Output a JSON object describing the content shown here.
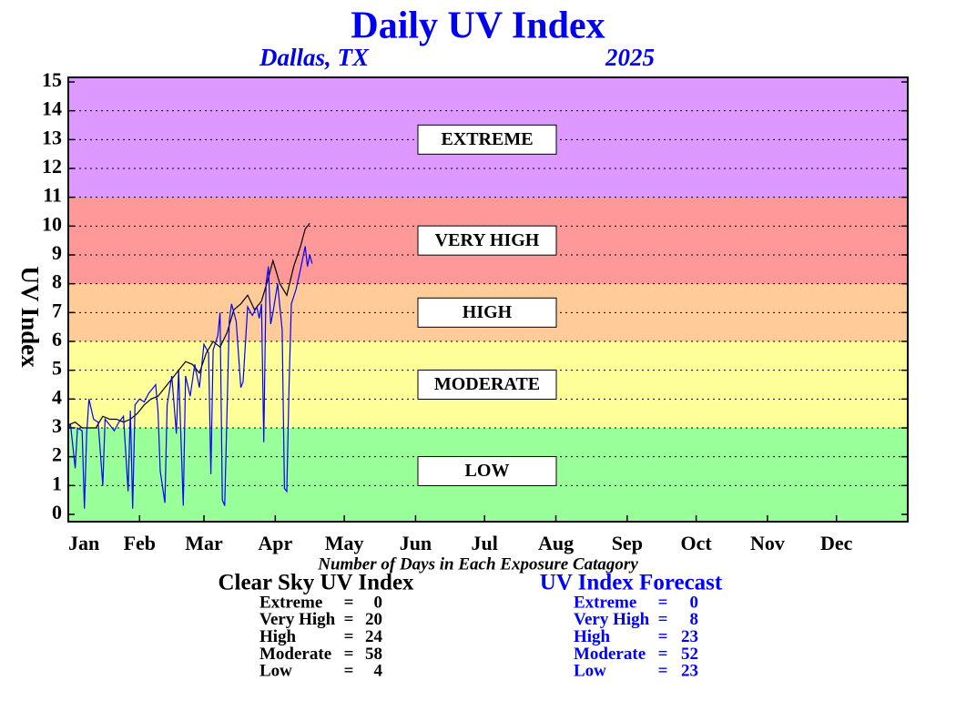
{
  "chart_data": {
    "type": "line",
    "title": "Daily UV Index",
    "subtitle": "Dallas, TX",
    "year": "2025",
    "y_label": "UV Index",
    "xlim": [
      1,
      366
    ],
    "xticks": [
      {
        "value": 1,
        "label": "Jan"
      },
      {
        "value": 32,
        "label": "Feb"
      },
      {
        "value": 60,
        "label": "Mar"
      },
      {
        "value": 91,
        "label": "Apr"
      },
      {
        "value": 121,
        "label": "May"
      },
      {
        "value": 152,
        "label": "Jun"
      },
      {
        "value": 182,
        "label": "Jul"
      },
      {
        "value": 213,
        "label": "Aug"
      },
      {
        "value": 244,
        "label": "Sep"
      },
      {
        "value": 274,
        "label": "Oct"
      },
      {
        "value": 305,
        "label": "Nov"
      },
      {
        "value": 335,
        "label": "Dec"
      }
    ],
    "ylim": [
      0,
      15
    ],
    "yticks": [
      0,
      1,
      2,
      3,
      4,
      5,
      6,
      7,
      8,
      9,
      10,
      11,
      12,
      13,
      14,
      15
    ],
    "grid": true,
    "bands": [
      {
        "label": "LOW",
        "from": 0,
        "to": 3,
        "color": "#99ff99"
      },
      {
        "label": "MODERATE",
        "from": 3,
        "to": 6,
        "color": "#ffff99"
      },
      {
        "label": "HIGH",
        "from": 6,
        "to": 8,
        "color": "#ffcc99"
      },
      {
        "label": "VERY HIGH",
        "from": 8,
        "to": 11,
        "color": "#ff9999"
      },
      {
        "label": "EXTREME",
        "from": 11,
        "to": 15,
        "color": "#dd99ff"
      }
    ],
    "series": [
      {
        "name": "Clear Sky UV Index",
        "color": "#000000",
        "x": [
          1,
          4,
          7,
          10,
          13,
          16,
          19,
          22,
          25,
          28,
          31,
          34,
          37,
          40,
          43,
          46,
          49,
          52,
          55,
          58,
          61,
          64,
          67,
          70,
          73,
          76,
          79,
          82,
          85,
          88,
          90,
          93,
          96,
          99,
          102,
          104,
          106
        ],
        "values": [
          3.1,
          3.2,
          3.0,
          3.0,
          3.0,
          3.4,
          3.3,
          3.3,
          3.2,
          3.3,
          3.5,
          3.8,
          4.0,
          4.1,
          4.4,
          4.7,
          5.0,
          5.3,
          5.2,
          4.9,
          5.6,
          6.0,
          5.8,
          6.3,
          7.1,
          7.3,
          7.6,
          7.1,
          7.4,
          8.2,
          8.8,
          8.0,
          7.6,
          8.6,
          9.3,
          9.9,
          10.1
        ]
      },
      {
        "name": "UV Index Forecast",
        "color": "#0000ff",
        "x": [
          1,
          2,
          4,
          5,
          7,
          8,
          9,
          10,
          12,
          14,
          16,
          17,
          19,
          21,
          23,
          25,
          27,
          28,
          29,
          30,
          32,
          34,
          36,
          39,
          40,
          41,
          43,
          44,
          46,
          48,
          49,
          51,
          52,
          54,
          56,
          58,
          60,
          62,
          63,
          64,
          66,
          67,
          68,
          69,
          71,
          72,
          74,
          76,
          77,
          79,
          81,
          83,
          84,
          85,
          86,
          87,
          88,
          89,
          90,
          92,
          94,
          95,
          96,
          97,
          98,
          100,
          102,
          104,
          105,
          106,
          107
        ],
        "values": [
          3.0,
          3.1,
          1.6,
          3.0,
          2.9,
          0.2,
          2.8,
          4.0,
          3.3,
          3.2,
          1.0,
          3.3,
          3.1,
          2.9,
          3.2,
          3.4,
          0.8,
          3.6,
          0.2,
          3.8,
          4.0,
          3.9,
          4.2,
          4.5,
          3.6,
          1.5,
          0.4,
          3.8,
          4.8,
          2.8,
          5.0,
          0.3,
          4.8,
          4.1,
          5.2,
          4.4,
          5.9,
          5.6,
          1.4,
          5.7,
          6.2,
          7.0,
          0.5,
          0.3,
          6.7,
          7.3,
          6.7,
          4.4,
          4.6,
          7.2,
          6.9,
          7.2,
          6.8,
          7.3,
          2.5,
          8.0,
          8.6,
          6.6,
          7.0,
          8.0,
          6.4,
          0.9,
          0.8,
          4.5,
          7.3,
          7.8,
          8.5,
          9.3,
          8.6,
          9.0,
          8.7
        ]
      }
    ],
    "summary_title": "Number of Days in Each Exposure Catagory",
    "equals": "=",
    "summary": [
      {
        "title": "Clear Sky UV Index",
        "rows": [
          {
            "label": "Extreme",
            "value": 0
          },
          {
            "label": "Very High",
            "value": 20
          },
          {
            "label": "High",
            "value": 24
          },
          {
            "label": "Moderate",
            "value": 58
          },
          {
            "label": "Low",
            "value": 4
          }
        ]
      },
      {
        "title": "UV Index Forecast",
        "rows": [
          {
            "label": "Extreme",
            "value": 0
          },
          {
            "label": "Very High",
            "value": 8
          },
          {
            "label": "High",
            "value": 23
          },
          {
            "label": "Moderate",
            "value": 52
          },
          {
            "label": "Low",
            "value": 23
          }
        ]
      }
    ]
  }
}
